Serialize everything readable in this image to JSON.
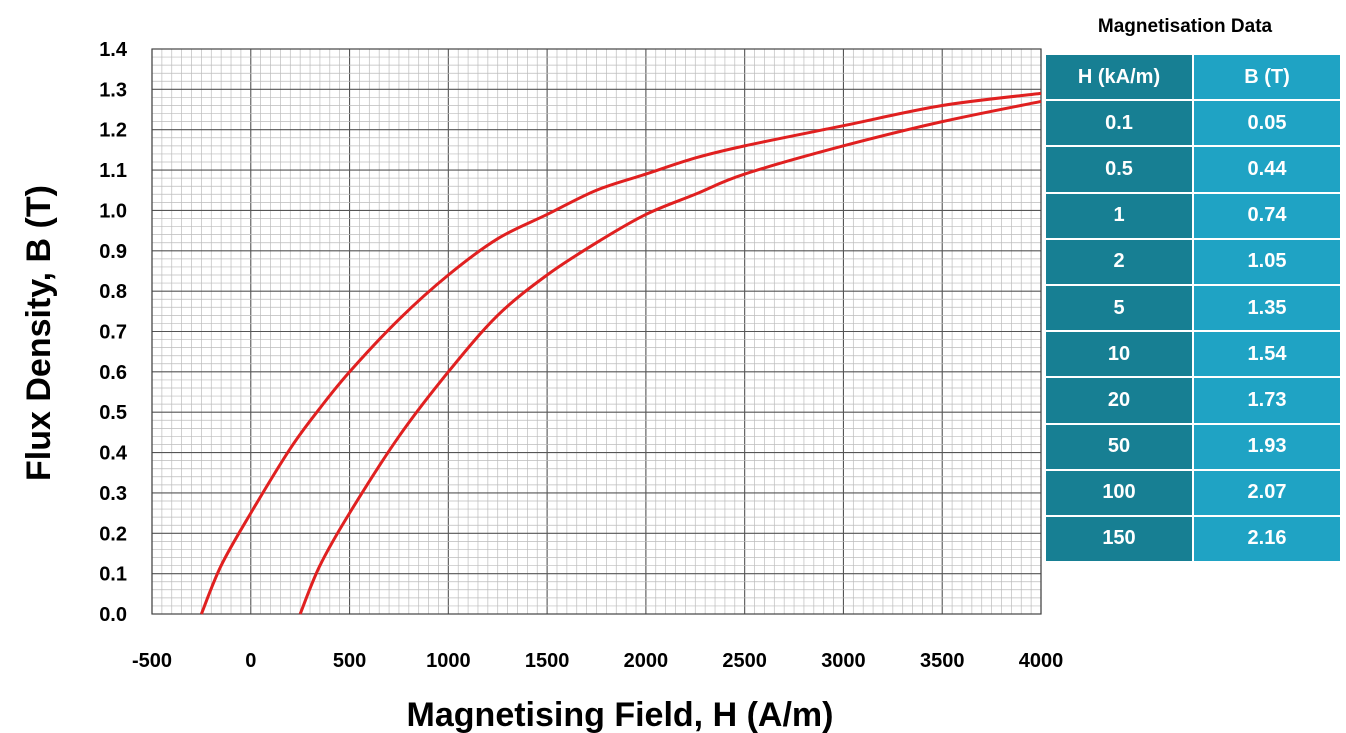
{
  "chart_data": {
    "type": "line",
    "title": "",
    "xlabel": "Magnetising Field, H (A/m)",
    "ylabel": "Flux Density, B (T)",
    "xlim": [
      -500,
      4000
    ],
    "ylim": [
      0.0,
      1.4
    ],
    "x_ticks": [
      "-500",
      "0",
      "500",
      "1000",
      "1500",
      "2000",
      "2500",
      "3000",
      "3500",
      "4000"
    ],
    "y_ticks": [
      "0.0",
      "0.1",
      "0.2",
      "0.3",
      "0.4",
      "0.5",
      "0.6",
      "0.7",
      "0.8",
      "0.9",
      "1.0",
      "1.1",
      "1.2",
      "1.3",
      "1.4"
    ],
    "grid": true,
    "line_color": "#e02020",
    "series": [
      {
        "x": [
          -250,
          -150,
          0,
          200,
          350,
          500,
          750,
          1000,
          1250,
          1500,
          1750,
          2000,
          2250,
          2500,
          3000,
          3500,
          4000
        ],
        "y": [
          0.0,
          0.12,
          0.25,
          0.41,
          0.51,
          0.6,
          0.73,
          0.84,
          0.93,
          0.99,
          1.05,
          1.09,
          1.13,
          1.16,
          1.21,
          1.26,
          1.29
        ]
      },
      {
        "x": [
          250,
          350,
          500,
          750,
          1000,
          1250,
          1500,
          1750,
          2000,
          2250,
          2500,
          3000,
          3500,
          4000
        ],
        "y": [
          0.0,
          0.12,
          0.25,
          0.44,
          0.6,
          0.74,
          0.84,
          0.92,
          0.99,
          1.04,
          1.09,
          1.16,
          1.22,
          1.27
        ]
      }
    ]
  },
  "table": {
    "title": "Magnetisation Data",
    "headers": [
      "H (kA/m)",
      "B (T)"
    ],
    "rows": [
      [
        "0.1",
        "0.05"
      ],
      [
        "0.5",
        "0.44"
      ],
      [
        "1",
        "0.74"
      ],
      [
        "2",
        "1.05"
      ],
      [
        "5",
        "1.35"
      ],
      [
        "10",
        "1.54"
      ],
      [
        "20",
        "1.73"
      ],
      [
        "50",
        "1.93"
      ],
      [
        "100",
        "2.07"
      ],
      [
        "150",
        "2.16"
      ]
    ],
    "colors": {
      "h_column": "#177f93",
      "b_column": "#1fa3c4",
      "text": "#ffffff"
    }
  }
}
